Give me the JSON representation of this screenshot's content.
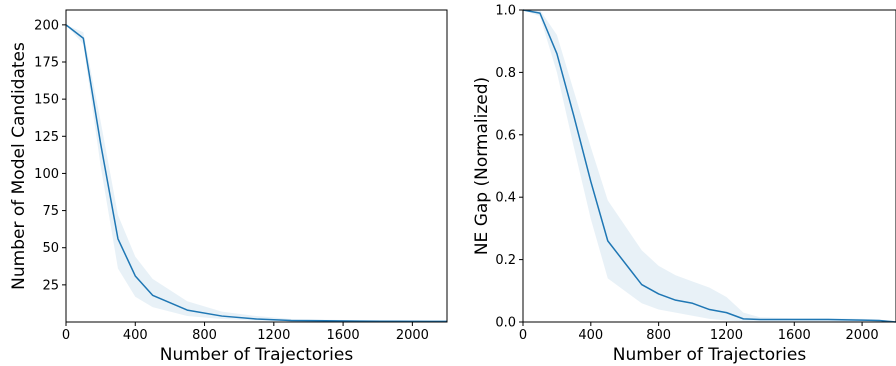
{
  "chart_data": [
    {
      "type": "line",
      "title": "",
      "xlabel": "Number of Trajectories",
      "ylabel": "Number of Model Candidates",
      "xlim": [
        0,
        2200
      ],
      "ylim": [
        0,
        210
      ],
      "xticks": [
        0,
        400,
        800,
        1200,
        1600,
        2000
      ],
      "yticks": [
        25,
        50,
        75,
        100,
        125,
        150,
        175,
        200
      ],
      "ytick_labels": [
        "25",
        "50",
        "75",
        "100",
        "125",
        "150",
        "175",
        "200"
      ],
      "grid": false,
      "line_color": "#1f77b4",
      "band_color": "#1f77b4",
      "series": [
        {
          "x": [
            0,
            100,
            200,
            300,
            400,
            500,
            700,
            900,
            1100,
            1300,
            1500,
            1700,
            1900,
            2100,
            2200
          ],
          "y": [
            200,
            191,
            120,
            56,
            31,
            18,
            8,
            4,
            2,
            1,
            0.8,
            0.6,
            0.5,
            0.4,
            0.4
          ],
          "upper": [
            200,
            195,
            135,
            72,
            44,
            29,
            14,
            7,
            4,
            2,
            1.5,
            1.2,
            1,
            0.8,
            0.8
          ],
          "lower": [
            200,
            187,
            105,
            36,
            17,
            10,
            4,
            2,
            1,
            0.5,
            0.4,
            0.3,
            0.3,
            0.2,
            0.2
          ]
        }
      ]
    },
    {
      "type": "line",
      "title": "",
      "xlabel": "Number of Trajectories",
      "ylabel": "NE Gap (Normalized)",
      "xlim": [
        0,
        2200
      ],
      "ylim": [
        0,
        1.0
      ],
      "xticks": [
        0,
        400,
        800,
        1200,
        1600,
        2000
      ],
      "yticks": [
        0.0,
        0.2,
        0.4,
        0.6,
        0.8,
        1.0
      ],
      "ytick_labels": [
        "0.0",
        "0.2",
        "0.4",
        "0.6",
        "0.8",
        "1.0"
      ],
      "grid": false,
      "line_color": "#1f77b4",
      "band_color": "#1f77b4",
      "series": [
        {
          "x": [
            0,
            100,
            200,
            300,
            400,
            500,
            700,
            800,
            900,
            1000,
            1100,
            1200,
            1300,
            1400,
            1600,
            1800,
            2000,
            2100,
            2200
          ],
          "y": [
            1.0,
            0.99,
            0.86,
            0.66,
            0.45,
            0.26,
            0.12,
            0.09,
            0.07,
            0.06,
            0.04,
            0.03,
            0.01,
            0.008,
            0.008,
            0.008,
            0.006,
            0.005,
            0.0
          ],
          "upper": [
            1.0,
            1.0,
            0.92,
            0.74,
            0.56,
            0.39,
            0.23,
            0.18,
            0.15,
            0.13,
            0.11,
            0.08,
            0.03,
            0.015,
            0.012,
            0.012,
            0.01,
            0.008,
            0.002
          ],
          "lower": [
            1.0,
            0.98,
            0.8,
            0.56,
            0.33,
            0.14,
            0.06,
            0.04,
            0.03,
            0.02,
            0.01,
            0.005,
            0.002,
            0.001,
            0.001,
            0.001,
            0.001,
            0.001,
            0.0
          ]
        }
      ]
    }
  ]
}
